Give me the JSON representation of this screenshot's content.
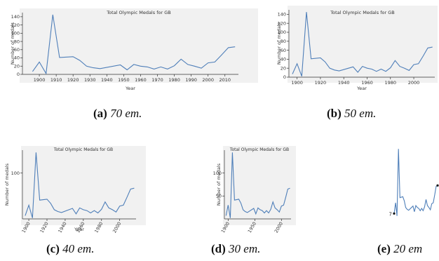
{
  "chart_data": {
    "type": "line",
    "title": "Total Olympic Medals for GB",
    "xlabel": "Year",
    "ylabel": "Number of medals",
    "x": [
      1896,
      1900,
      1904,
      1908,
      1912,
      1920,
      1924,
      1928,
      1932,
      1936,
      1948,
      1952,
      1956,
      1960,
      1964,
      1968,
      1972,
      1976,
      1980,
      1984,
      1988,
      1992,
      1996,
      2000,
      2004,
      2008,
      2012,
      2016
    ],
    "values": [
      7,
      30,
      2,
      145,
      41,
      43,
      34,
      20,
      16,
      14,
      23,
      11,
      24,
      20,
      18,
      13,
      18,
      13,
      21,
      37,
      24,
      20,
      15,
      28,
      30,
      47,
      65,
      67
    ],
    "xticks": {
      "a": [
        "1900",
        "1910",
        "1920",
        "1930",
        "1940",
        "1950",
        "1960",
        "1970",
        "1980",
        "1990",
        "2000",
        "2010"
      ],
      "b": [
        "1900",
        "1920",
        "1940",
        "1960",
        "1980",
        "2000"
      ],
      "c": [
        "1900",
        "1920",
        "1940",
        "1960",
        "1980",
        "2000"
      ],
      "d": [
        "1900",
        "1950",
        "2000"
      ]
    },
    "yticks": {
      "a": [
        "0",
        "20",
        "40",
        "60",
        "80",
        "100",
        "120",
        "140"
      ],
      "b": [
        "0",
        "20",
        "40",
        "60",
        "80",
        "100",
        "120",
        "140"
      ],
      "c": [
        "100"
      ],
      "d": [
        "50",
        "100"
      ]
    },
    "panel_e_labels": [
      "7",
      "6"
    ]
  },
  "captions": [
    {
      "label": "(a)",
      "text": "70 em."
    },
    {
      "label": "(b)",
      "text": "50 em."
    },
    {
      "label": "(c)",
      "text": "40 em."
    },
    {
      "label": "(d)",
      "text": "30 em."
    },
    {
      "label": "(e)",
      "text": "20 em"
    }
  ]
}
